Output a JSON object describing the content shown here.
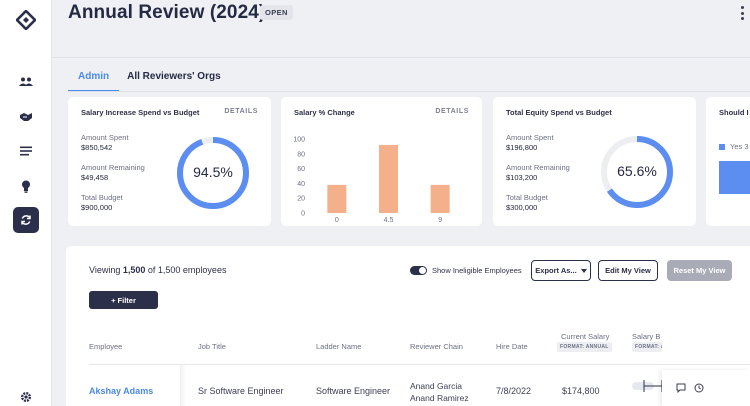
{
  "header": {
    "title": "Annual Review (2024)",
    "status": "OPEN"
  },
  "sidebar": {
    "items": [
      {
        "name": "logo",
        "icon": "diamond-logo-icon"
      },
      {
        "name": "people",
        "icon": "people-icon"
      },
      {
        "name": "handshake",
        "icon": "handshake-icon"
      },
      {
        "name": "list",
        "icon": "list-icon"
      },
      {
        "name": "idea",
        "icon": "lightbulb-icon"
      },
      {
        "name": "review-cycles",
        "icon": "refresh-icon",
        "active": true
      },
      {
        "name": "settings",
        "icon": "gear-icon"
      }
    ]
  },
  "tabs": [
    {
      "label": "Admin",
      "active": true
    },
    {
      "label": "All Reviewers' Orgs",
      "active": false
    }
  ],
  "cards": {
    "salary_increase": {
      "title": "Salary Increase Spend vs Budget",
      "details": "DETAILS",
      "spent_label": "Amount Spent",
      "spent_value": "$850,542",
      "remaining_label": "Amount Remaining",
      "remaining_value": "$49,458",
      "total_label": "Total Budget",
      "total_value": "$900,000",
      "percent_text": "94.5%",
      "percent": 94.5
    },
    "salary_change": {
      "title": "Salary % Change",
      "details": "DETAILS"
    },
    "equity": {
      "title": "Total Equity Spend vs Budget",
      "spent_label": "Amount Spent",
      "spent_value": "$196,800",
      "remaining_label": "Amount Remaining",
      "remaining_value": "$103,200",
      "total_label": "Total Budget",
      "total_value": "$300,000",
      "percent_text": "65.6%",
      "percent": 65.6
    },
    "partial": {
      "title": "Should I",
      "legend": "Yes 3"
    }
  },
  "chart_data": {
    "type": "bar",
    "categories": [
      "0",
      "4.5",
      "9"
    ],
    "values": [
      38,
      92,
      38
    ],
    "ylim": [
      0,
      100
    ],
    "yticks": [
      "0",
      "20",
      "40",
      "60",
      "80",
      "100"
    ],
    "title": "Salary % Change",
    "xlabel": "",
    "ylabel": "",
    "color": "#f4b08a"
  },
  "table": {
    "viewing_prefix": "Viewing ",
    "viewing_count": "1,500",
    "viewing_suffix": " of 1,500 employees",
    "toggle_label": "Show Ineligible Employees",
    "export_label": "Export As...",
    "edit_view_label": "Edit My View",
    "reset_view_label": "Reset My View",
    "filter_label": "+ Filter",
    "columns": {
      "employee": "Employee",
      "job_title": "Job Title",
      "ladder": "Ladder Name",
      "reviewer_chain": "Reviewer Chain",
      "hire_date": "Hire Date",
      "current_salary": "Current Salary",
      "current_salary_fmt": "FORMAT: ANNUAL",
      "salary_b": "Salary B",
      "salary_b_fmt": "FORMAT: A"
    },
    "rows": [
      {
        "employee": "Akshay Adams",
        "job_title": "Sr Software Engineer",
        "ladder": "Software Engineer",
        "reviewer_1": "Anand Garcia",
        "reviewer_2": "Anand Ramirez",
        "hire_date": "7/8/2022",
        "current_salary": "$174,800"
      }
    ]
  },
  "colors": {
    "accent": "#4a8ae8",
    "donut": "#5b8ef0",
    "navy": "#2b2f4a"
  }
}
